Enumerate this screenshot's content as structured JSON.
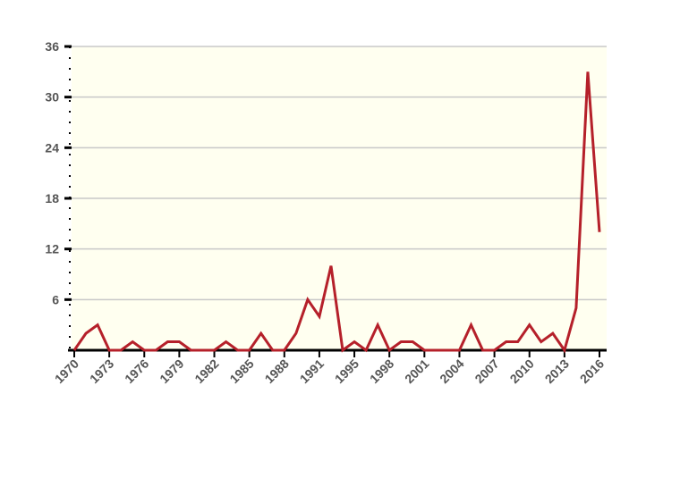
{
  "chart_data": {
    "type": "line",
    "categories": [
      "1970",
      null,
      null,
      "1973",
      null,
      null,
      "1976",
      null,
      null,
      "1979",
      null,
      null,
      "1982",
      null,
      null,
      "1985",
      null,
      null,
      "1988",
      null,
      null,
      "1991",
      null,
      null,
      "1995",
      null,
      null,
      "1998",
      null,
      null,
      "2001",
      null,
      null,
      "2004",
      null,
      null,
      "2007",
      null,
      null,
      "2010",
      null,
      null,
      "2013",
      null,
      null,
      "2016"
    ],
    "values": [
      0,
      2,
      3,
      0,
      0,
      1,
      0,
      0,
      1,
      1,
      0,
      0,
      0,
      1,
      0,
      0,
      2,
      0,
      0,
      2,
      6,
      4,
      10,
      0,
      1,
      0,
      3,
      0,
      1,
      1,
      0,
      0,
      0,
      0,
      3,
      0,
      0,
      1,
      1,
      3,
      1,
      2,
      0,
      5,
      33,
      14
    ],
    "color": "#b5202a",
    "ylim": [
      0,
      36
    ],
    "yticks": [
      6,
      12,
      18,
      24,
      30,
      36
    ],
    "grid": true
  }
}
